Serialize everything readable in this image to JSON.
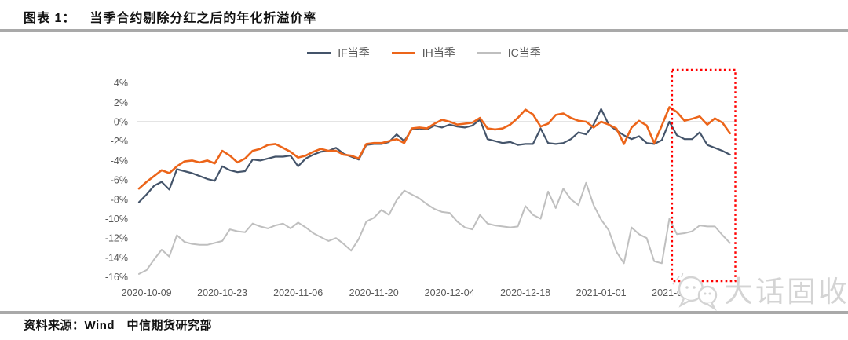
{
  "header": {
    "figure_label": "图表 1：",
    "figure_title": "当季合约剔除分红之后的年化折溢价率"
  },
  "source": {
    "text": "资料来源：Wind　中信期货研究部"
  },
  "watermark": {
    "text": "大话固收",
    "icon": "chat-bubbles-logo"
  },
  "colors": {
    "if_line": "#44546A",
    "ih_line": "#EC651A",
    "ic_line": "#BFBFBF",
    "zero_gridline": "#DCDCDC",
    "axis_text": "#595959",
    "divider": "#A9A9A9",
    "highlight_red": "#FF0000",
    "watermark_gray": "#D4D4D4"
  },
  "chart_data": {
    "type": "line",
    "title": "当季合约剔除分红之后的年化折溢价率",
    "ylabel": "",
    "xlabel": "",
    "y_axis": {
      "min": -16,
      "max": 4,
      "step": 2,
      "unit": "%",
      "tick_labels": [
        "4%",
        "2%",
        "0%",
        "-2%",
        "-4%",
        "-6%",
        "-8%",
        "-10%",
        "-12%",
        "-14%",
        "-16%"
      ],
      "tick_values": [
        4,
        2,
        0,
        -2,
        -4,
        -6,
        -8,
        -10,
        -12,
        -14,
        -16
      ]
    },
    "x_axis": {
      "tick_labels": [
        "2020-10-09",
        "2020-10-23",
        "2020-11-06",
        "2020-11-20",
        "2020-12-04",
        "2020-12-18",
        "2021-01-01",
        "2021-01-15"
      ],
      "tick_indices": [
        1,
        11,
        21,
        31,
        41,
        51,
        61,
        71
      ],
      "points_are": "daily observations, index 0 ≈ 2020-10-08, index 78 ≈ 2021-01-27"
    },
    "grid": "zero-line only",
    "legend_position": "top-center",
    "series": [
      {
        "name": "IF当季",
        "color": "#44546A",
        "values": [
          -8.3,
          -7.5,
          -6.6,
          -6.2,
          -7.0,
          -4.9,
          -5.1,
          -5.3,
          -5.6,
          -5.9,
          -6.1,
          -4.6,
          -5.0,
          -5.2,
          -5.1,
          -3.9,
          -4.0,
          -3.8,
          -3.6,
          -3.6,
          -3.5,
          -4.6,
          -3.8,
          -3.4,
          -3.1,
          -3.0,
          -2.7,
          -3.3,
          -3.6,
          -3.9,
          -2.4,
          -2.3,
          -2.3,
          -2.1,
          -1.3,
          -2.0,
          -0.8,
          -0.7,
          -0.8,
          -0.4,
          -0.6,
          -0.3,
          -0.5,
          -0.6,
          -0.4,
          0.2,
          -1.8,
          -2.0,
          -2.2,
          -2.1,
          -2.4,
          -2.3,
          -2.3,
          -0.7,
          -2.2,
          -2.3,
          -2.2,
          -1.8,
          -1.1,
          -1.3,
          -0.3,
          1.3,
          -0.3,
          -0.9,
          -1.4,
          -1.8,
          -1.5,
          -2.2,
          -2.3,
          -1.9,
          0.0,
          -1.4,
          -1.8,
          -1.8,
          -1.1,
          -2.4,
          -2.7,
          -3.0,
          -3.4
        ]
      },
      {
        "name": "IH当季",
        "color": "#EC651A",
        "values": [
          -6.9,
          -6.2,
          -5.6,
          -5.0,
          -5.3,
          -4.6,
          -4.1,
          -4.0,
          -4.2,
          -4.0,
          -4.3,
          -3.0,
          -3.5,
          -4.2,
          -3.8,
          -3.0,
          -2.8,
          -2.4,
          -2.3,
          -2.7,
          -3.1,
          -3.7,
          -3.5,
          -3.1,
          -2.8,
          -3.0,
          -3.0,
          -3.4,
          -3.5,
          -3.8,
          -2.3,
          -2.2,
          -2.2,
          -2.0,
          -1.8,
          -2.2,
          -0.7,
          -0.6,
          -0.7,
          -0.2,
          0.2,
          0.0,
          -0.3,
          -0.2,
          -0.1,
          0.4,
          -0.7,
          -0.8,
          -0.7,
          -0.3,
          0.4,
          1.25,
          0.75,
          -0.5,
          -0.2,
          0.7,
          0.85,
          0.4,
          0.1,
          0.0,
          -0.6,
          0.0,
          -0.3,
          -0.7,
          -2.3,
          -0.6,
          0.1,
          -0.4,
          -2.2,
          -0.4,
          1.5,
          1.0,
          0.1,
          0.3,
          0.55,
          -0.3,
          0.35,
          -0.1,
          -1.2
        ]
      },
      {
        "name": "IC当季",
        "color": "#BFBFBF",
        "values": [
          -15.7,
          -15.3,
          -14.2,
          -13.2,
          -13.9,
          -11.7,
          -12.4,
          -12.6,
          -12.7,
          -12.7,
          -12.5,
          -12.3,
          -11.1,
          -11.3,
          -11.4,
          -10.5,
          -10.8,
          -11.0,
          -10.7,
          -10.5,
          -11.0,
          -10.4,
          -10.9,
          -11.5,
          -11.9,
          -12.3,
          -12.0,
          -12.6,
          -13.3,
          -12.1,
          -10.3,
          -9.9,
          -9.1,
          -9.6,
          -8.1,
          -7.1,
          -7.5,
          -7.9,
          -8.5,
          -9.0,
          -9.3,
          -9.4,
          -10.3,
          -10.9,
          -11.1,
          -9.6,
          -10.5,
          -10.7,
          -10.8,
          -10.9,
          -10.8,
          -8.7,
          -9.6,
          -10.0,
          -7.2,
          -8.9,
          -6.9,
          -8.0,
          -8.6,
          -6.3,
          -8.6,
          -10.1,
          -11.2,
          -13.4,
          -14.6,
          -10.9,
          -11.6,
          -12.0,
          -14.4,
          -14.6,
          -10.0,
          -11.6,
          -11.5,
          -11.3,
          -10.7,
          -10.8,
          -10.8,
          -11.7,
          -12.5
        ]
      }
    ],
    "highlight": {
      "shape": "dotted-box",
      "color": "#FF0000",
      "from_index": 70.35,
      "to_index": 78.7,
      "y_top_value": 5.35,
      "y_bottom_value": -16.45,
      "meaning": "recent period (mid/late January 2021) highlighted"
    }
  }
}
